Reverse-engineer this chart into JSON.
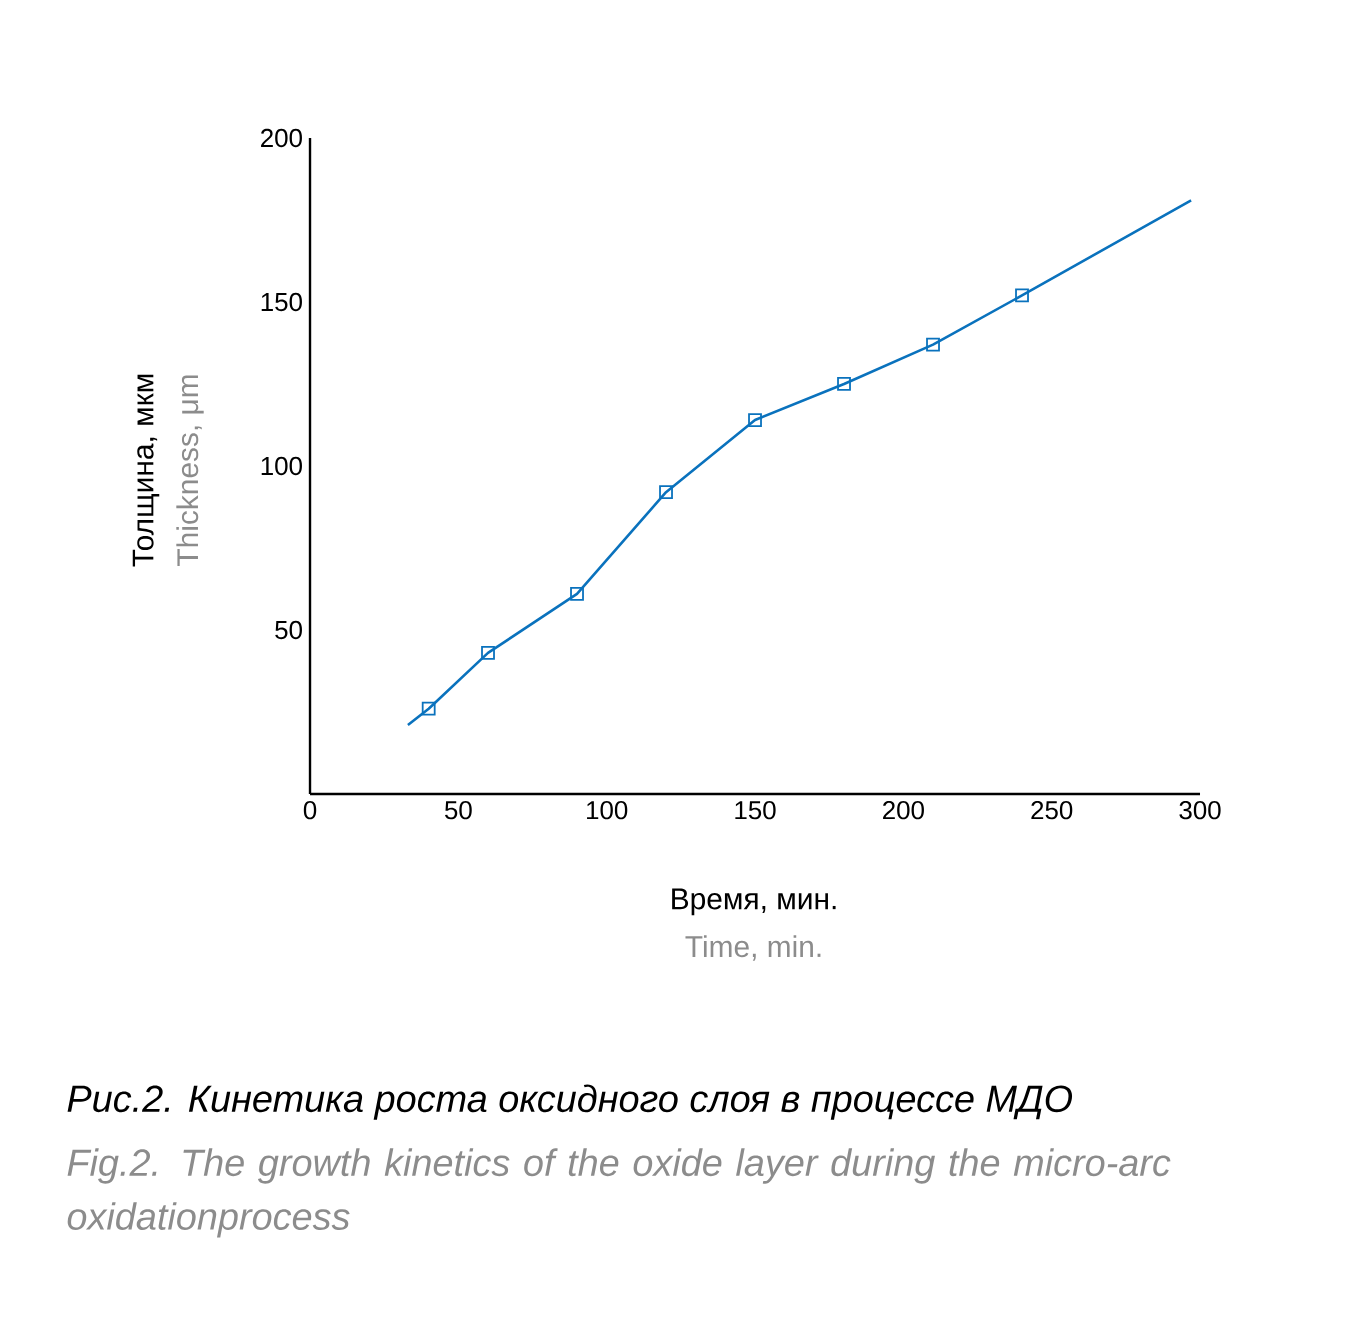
{
  "chart_data": {
    "type": "line",
    "title": "Рис.2. Кинетика роста оксидного слоя в процессе МДО",
    "subtitle": "Fig.2. The growth kinetics of the oxide layer during the micro-arc oxidationprocess",
    "xlabel": "Время, мин.",
    "ylabel": "Толщина, мкм",
    "annotations": [
      "Time, min.",
      "Thickness, μm"
    ],
    "xlim": [
      0,
      300
    ],
    "xticks": [
      0,
      50,
      100,
      150,
      200,
      250,
      300
    ],
    "ylim": [
      0,
      200
    ],
    "yticks": [
      50,
      100,
      150,
      200
    ],
    "series": [
      {
        "color": "#0a72bd",
        "marker": "none",
        "x": [
          33,
          40,
          60,
          90,
          120,
          150,
          180,
          210,
          240,
          297
        ],
        "values": [
          21,
          26,
          43,
          61,
          92,
          114,
          125,
          137,
          152,
          181
        ]
      },
      {
        "type": "scatter",
        "color": "#0a72bd",
        "marker": "square",
        "x": [
          40,
          60,
          90,
          120,
          150,
          180,
          210,
          240
        ],
        "values": [
          26,
          43,
          61,
          92,
          114,
          125,
          137,
          152
        ]
      }
    ]
  }
}
